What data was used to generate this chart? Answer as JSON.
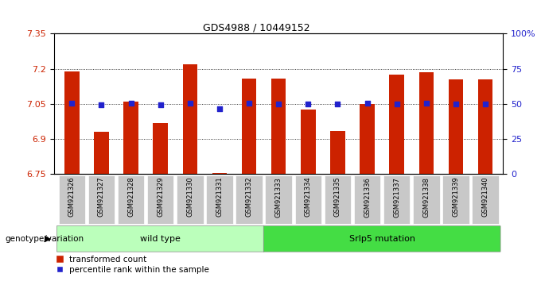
{
  "title": "GDS4988 / 10449152",
  "samples": [
    "GSM921326",
    "GSM921327",
    "GSM921328",
    "GSM921329",
    "GSM921330",
    "GSM921331",
    "GSM921332",
    "GSM921333",
    "GSM921334",
    "GSM921335",
    "GSM921336",
    "GSM921337",
    "GSM921338",
    "GSM921339",
    "GSM921340"
  ],
  "red_values": [
    7.19,
    6.93,
    7.06,
    6.97,
    7.22,
    6.755,
    7.16,
    7.16,
    7.025,
    6.935,
    7.05,
    7.175,
    7.185,
    7.155,
    7.155
  ],
  "blue_values": [
    7.055,
    7.045,
    7.055,
    7.045,
    7.055,
    7.03,
    7.055,
    7.05,
    7.05,
    7.05,
    7.055,
    7.05,
    7.055,
    7.05,
    7.05
  ],
  "ymin": 6.75,
  "ymax": 7.35,
  "yticks": [
    6.75,
    6.9,
    7.05,
    7.2,
    7.35
  ],
  "right_yticks": [
    0,
    25,
    50,
    75,
    100
  ],
  "right_ytick_labels": [
    "0",
    "25",
    "50",
    "75",
    "100%"
  ],
  "wild_type_count": 7,
  "mutation_count": 8,
  "wild_type_label": "wild type",
  "mutation_label": "Srlp5 mutation",
  "genotype_label": "genotype/variation",
  "legend_red": "transformed count",
  "legend_blue": "percentile rank within the sample",
  "bar_color": "#cc2200",
  "blue_color": "#2222cc",
  "bg_color": "#ffffff",
  "plot_bg": "#ffffff",
  "tick_label_bg": "#c8c8c8",
  "wild_type_bg": "#bbffbb",
  "mutation_bg": "#44dd44"
}
